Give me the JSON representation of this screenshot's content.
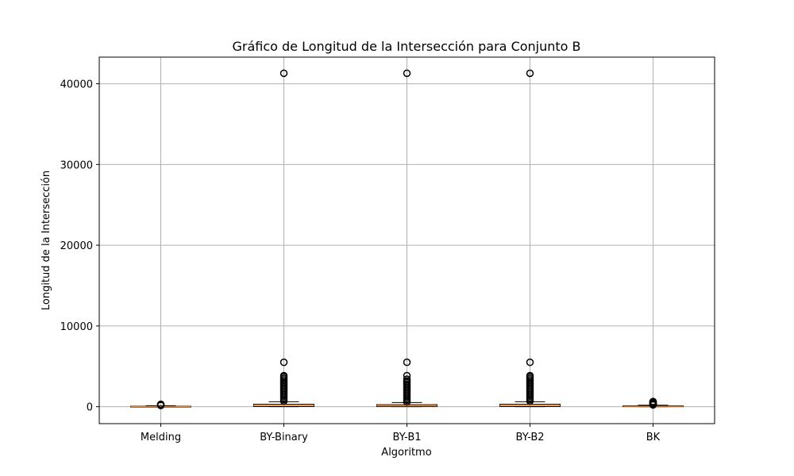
{
  "chart_data": {
    "type": "box",
    "title": "Gráfico de Longitud de la Intersección para Conjunto B",
    "xlabel": "Algoritmo",
    "ylabel": "Longitud de la Intersección",
    "categories": [
      "Melding",
      "BY-Binary",
      "BY-B1",
      "BY-B2",
      "BK"
    ],
    "ylim": [
      -2100,
      43300
    ],
    "yticks": [
      0,
      10000,
      20000,
      30000,
      40000
    ],
    "ytick_labels": [
      "0",
      "10000",
      "20000",
      "30000",
      "40000"
    ],
    "grid": true,
    "boxes": [
      {
        "name": "Melding",
        "whislo": 0,
        "q1": 0,
        "med": 20,
        "q3": 60,
        "whishi": 120,
        "fliers": [
          150,
          200,
          250,
          300
        ]
      },
      {
        "name": "BY-Binary",
        "whislo": 0,
        "q1": 20,
        "med": 150,
        "q3": 300,
        "whishi": 620,
        "fliers": [
          700,
          900,
          1100,
          1300,
          1500,
          1700,
          1900,
          2100,
          2300,
          2500,
          2700,
          2900,
          3100,
          3300,
          3500,
          3700,
          3850,
          5500,
          41300
        ]
      },
      {
        "name": "BY-B1",
        "whislo": 0,
        "q1": 10,
        "med": 100,
        "q3": 250,
        "whishi": 520,
        "fliers": [
          600,
          800,
          1000,
          1200,
          1400,
          1600,
          1800,
          2000,
          2200,
          2400,
          2600,
          2800,
          3000,
          3200,
          3400,
          3850,
          5500,
          41300
        ]
      },
      {
        "name": "BY-B2",
        "whislo": 0,
        "q1": 20,
        "med": 150,
        "q3": 300,
        "whishi": 620,
        "fliers": [
          700,
          900,
          1100,
          1300,
          1500,
          1700,
          1900,
          2100,
          2300,
          2500,
          2700,
          2900,
          3100,
          3300,
          3500,
          3700,
          3850,
          5500,
          41300
        ]
      },
      {
        "name": "BK",
        "whislo": 0,
        "q1": 0,
        "med": 30,
        "q3": 100,
        "whishi": 180,
        "fliers": [
          220,
          280,
          340,
          400,
          460,
          520,
          580,
          640
        ]
      }
    ],
    "colors": {
      "box": "#000000",
      "median": "#ff7f0e",
      "grid": "#b0b0b0",
      "flier": "#000000"
    }
  }
}
